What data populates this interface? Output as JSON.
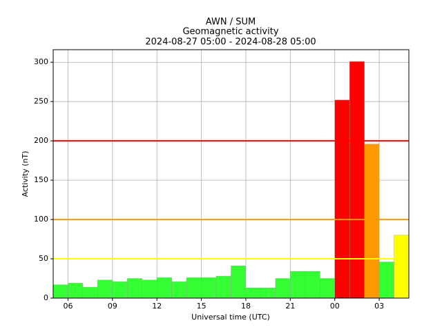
{
  "chart_data": {
    "type": "histogram",
    "title": "AWN / SUM",
    "subtitle": "Geomagnetic activity",
    "period": "2024-08-27 05:00 - 2024-08-28 05:00",
    "x_label": "Universal time (UTC)",
    "y_label": "Activity (nT)",
    "bins": [
      5,
      6,
      7,
      8,
      9,
      10,
      11,
      12,
      13,
      14,
      15,
      16,
      17,
      18,
      19,
      20,
      21,
      22,
      23,
      24,
      25,
      26,
      27,
      28,
      29
    ],
    "values": [
      17,
      19,
      14,
      23,
      21,
      25,
      23,
      26,
      21,
      26,
      26,
      28,
      41,
      13,
      13,
      25,
      34,
      34,
      25,
      252,
      301,
      196,
      46,
      80
    ],
    "colors": [
      "#33ff33",
      "#33ff33",
      "#33ff33",
      "#33ff33",
      "#33ff33",
      "#33ff33",
      "#33ff33",
      "#33ff33",
      "#33ff33",
      "#33ff33",
      "#33ff33",
      "#33ff33",
      "#33ff33",
      "#33ff33",
      "#33ff33",
      "#33ff33",
      "#33ff33",
      "#33ff33",
      "#33ff33",
      "#ff0000",
      "#ff0000",
      "#ff9900",
      "#33ff33",
      "#ffff00"
    ],
    "thresholds": [
      {
        "value": 50,
        "color": "#ffff00"
      },
      {
        "value": 100,
        "color": "#ff9900"
      },
      {
        "value": 200,
        "color": "#ff0000"
      }
    ],
    "xlim": [
      5,
      29
    ],
    "xticks": [
      {
        "value": 6,
        "label": "06"
      },
      {
        "value": 9,
        "label": "09"
      },
      12,
      15,
      18,
      21,
      {
        "value": 24,
        "label": "00"
      },
      {
        "value": 27,
        "label": "03"
      }
    ],
    "ylim": [
      0,
      316
    ],
    "yticks": [
      0,
      50,
      100,
      150,
      200,
      250,
      300
    ],
    "grid": true
  }
}
